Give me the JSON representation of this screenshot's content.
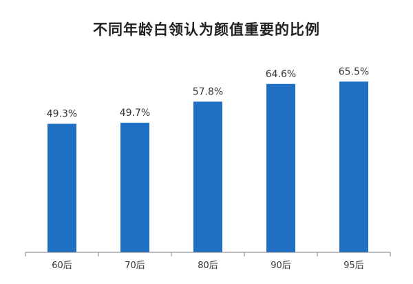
{
  "chart_data": {
    "type": "bar",
    "title": "不同年龄白领认为颜值重要的比例",
    "categories": [
      "60后",
      "70后",
      "80后",
      "90后",
      "95后"
    ],
    "values": [
      49.3,
      49.7,
      57.8,
      64.6,
      65.5
    ],
    "value_labels": [
      "49.3%",
      "49.7%",
      "57.8%",
      "64.6%",
      "65.5%"
    ],
    "xlabel": "",
    "ylabel": "",
    "ylim": [
      0,
      73
    ],
    "grid": false,
    "legend": "none",
    "colors": {
      "bar": "#1f6fc5",
      "axis": "#7f7f7f"
    }
  }
}
